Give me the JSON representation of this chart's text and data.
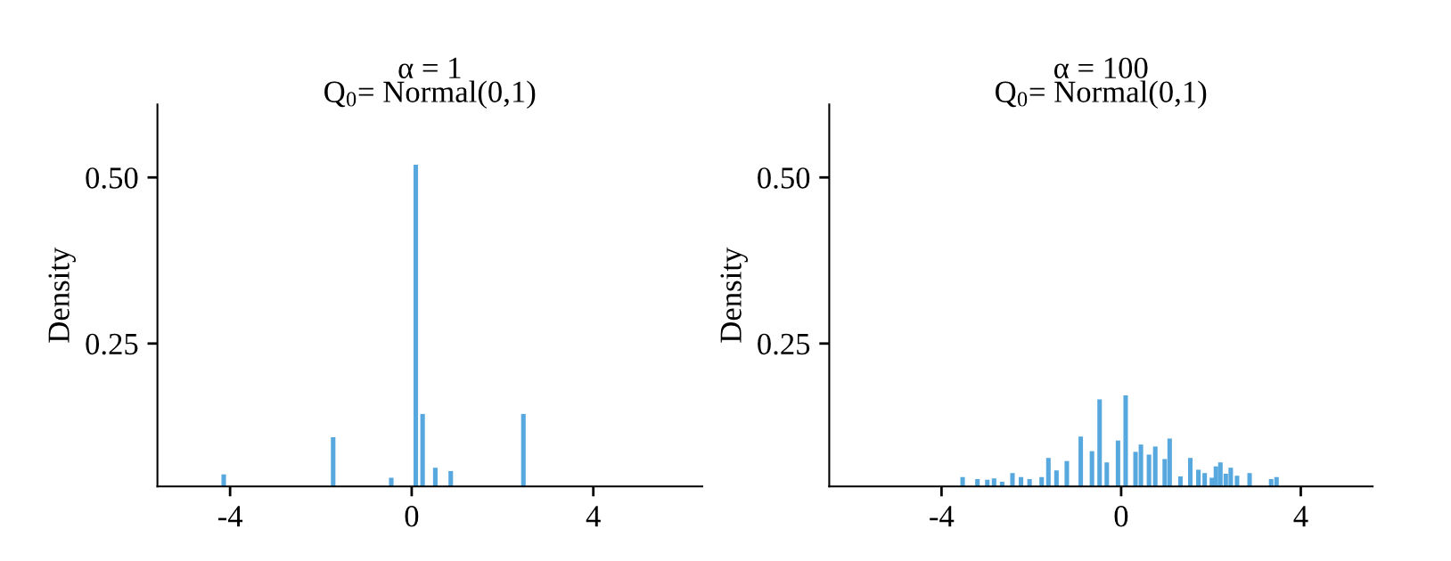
{
  "chart_data": [
    {
      "type": "bar",
      "title": "α = 1",
      "subtitle": "Q$_{0}$= Normal(0,1)",
      "ylabel": "Density",
      "color": "#56a8de",
      "x": [
        -4.14,
        -1.73,
        -0.45,
        0.09,
        0.24,
        0.52,
        0.86,
        2.46
      ],
      "values": [
        0.053,
        0.109,
        0.048,
        0.519,
        0.144,
        0.063,
        0.058,
        0.144
      ],
      "xlim": [
        -5.6,
        6.4
      ],
      "ylim": [
        0.035,
        0.61
      ],
      "xticks": [
        -4,
        0,
        4
      ],
      "yticks": [
        0.25,
        {
          "value": 0.5,
          "label": "0.50"
        }
      ]
    },
    {
      "type": "bar",
      "title": "α = 100",
      "subtitle": "Q$_{0}$= Normal(0,1)",
      "ylabel": "Density",
      "color": "#56a8de",
      "x": [
        -3.53,
        -3.2,
        -2.98,
        -2.83,
        -2.65,
        -2.42,
        -2.23,
        -2.04,
        -1.77,
        -1.62,
        -1.44,
        -1.21,
        -0.9,
        -0.65,
        -0.48,
        -0.32,
        -0.07,
        0.1,
        0.32,
        0.44,
        0.62,
        0.76,
        0.97,
        1.08,
        1.32,
        1.54,
        1.72,
        1.86,
        2.02,
        2.11,
        2.21,
        2.33,
        2.44,
        2.58,
        2.86,
        3.34,
        3.46
      ],
      "values": [
        0.049,
        0.046,
        0.045,
        0.047,
        0.042,
        0.055,
        0.049,
        0.046,
        0.049,
        0.078,
        0.059,
        0.073,
        0.11,
        0.088,
        0.166,
        0.071,
        0.104,
        0.172,
        0.087,
        0.098,
        0.083,
        0.095,
        0.076,
        0.107,
        0.05,
        0.078,
        0.06,
        0.055,
        0.048,
        0.065,
        0.071,
        0.054,
        0.063,
        0.051,
        0.055,
        0.046,
        0.049
      ],
      "xlim": [
        -6.5,
        5.6
      ],
      "ylim": [
        0.035,
        0.61
      ],
      "xticks": [
        -4,
        0,
        4
      ],
      "yticks": [
        0.25,
        {
          "value": 0.5,
          "label": "0.50"
        }
      ]
    }
  ]
}
